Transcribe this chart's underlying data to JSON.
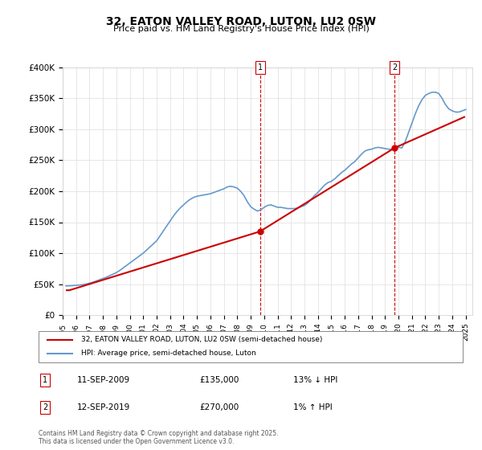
{
  "title": "32, EATON VALLEY ROAD, LUTON, LU2 0SW",
  "subtitle": "Price paid vs. HM Land Registry's House Price Index (HPI)",
  "ylabel_ticks": [
    "£0",
    "£50K",
    "£100K",
    "£150K",
    "£200K",
    "£250K",
    "£300K",
    "£350K",
    "£400K"
  ],
  "ylim": [
    0,
    400000
  ],
  "xlim_start": 1995.0,
  "xlim_end": 2025.5,
  "transaction1_year": 2009.69,
  "transaction2_year": 2019.7,
  "transaction1_price": 135000,
  "transaction2_price": 270000,
  "legend_line1": "32, EATON VALLEY ROAD, LUTON, LU2 0SW (semi-detached house)",
  "legend_line2": "HPI: Average price, semi-detached house, Luton",
  "table_row1": [
    "1",
    "11-SEP-2009",
    "£135,000",
    "13% ↓ HPI"
  ],
  "table_row2": [
    "2",
    "12-SEP-2019",
    "£270,000",
    "1% ↑ HPI"
  ],
  "footnote": "Contains HM Land Registry data © Crown copyright and database right 2025.\nThis data is licensed under the Open Government Licence v3.0.",
  "line_color_red": "#cc0000",
  "line_color_blue": "#6699cc",
  "bg_color": "#f8f8f8",
  "hpi_data": {
    "years": [
      1995.25,
      1995.5,
      1995.75,
      1996.0,
      1996.25,
      1996.5,
      1996.75,
      1997.0,
      1997.25,
      1997.5,
      1997.75,
      1998.0,
      1998.25,
      1998.5,
      1998.75,
      1999.0,
      1999.25,
      1999.5,
      1999.75,
      2000.0,
      2000.25,
      2000.5,
      2000.75,
      2001.0,
      2001.25,
      2001.5,
      2001.75,
      2002.0,
      2002.25,
      2002.5,
      2002.75,
      2003.0,
      2003.25,
      2003.5,
      2003.75,
      2004.0,
      2004.25,
      2004.5,
      2004.75,
      2005.0,
      2005.25,
      2005.5,
      2005.75,
      2006.0,
      2006.25,
      2006.5,
      2006.75,
      2007.0,
      2007.25,
      2007.5,
      2007.75,
      2008.0,
      2008.25,
      2008.5,
      2008.75,
      2009.0,
      2009.25,
      2009.5,
      2009.75,
      2010.0,
      2010.25,
      2010.5,
      2010.75,
      2011.0,
      2011.25,
      2011.5,
      2011.75,
      2012.0,
      2012.25,
      2012.5,
      2012.75,
      2013.0,
      2013.25,
      2013.5,
      2013.75,
      2014.0,
      2014.25,
      2014.5,
      2014.75,
      2015.0,
      2015.25,
      2015.5,
      2015.75,
      2016.0,
      2016.25,
      2016.5,
      2016.75,
      2017.0,
      2017.25,
      2017.5,
      2017.75,
      2018.0,
      2018.25,
      2018.5,
      2018.75,
      2019.0,
      2019.25,
      2019.5,
      2019.75,
      2020.0,
      2020.25,
      2020.5,
      2020.75,
      2021.0,
      2021.25,
      2021.5,
      2021.75,
      2022.0,
      2022.25,
      2022.5,
      2022.75,
      2023.0,
      2023.25,
      2023.5,
      2023.75,
      2024.0,
      2024.25,
      2024.5,
      2024.75,
      2025.0
    ],
    "values": [
      47000,
      47200,
      47500,
      48000,
      48500,
      49000,
      50000,
      51500,
      53000,
      55000,
      57000,
      59000,
      61000,
      63500,
      66000,
      68500,
      72000,
      76000,
      80000,
      84000,
      88000,
      92000,
      96000,
      100000,
      105000,
      110000,
      115000,
      120000,
      128000,
      136000,
      144000,
      152000,
      160000,
      167000,
      173000,
      178000,
      183000,
      187000,
      190000,
      192000,
      193000,
      194000,
      195000,
      196000,
      198000,
      200000,
      202000,
      204000,
      207000,
      208000,
      207000,
      205000,
      200000,
      193000,
      183000,
      175000,
      171000,
      168000,
      170000,
      174000,
      177000,
      178000,
      176000,
      174000,
      174000,
      173000,
      172000,
      172000,
      172000,
      173000,
      175000,
      177000,
      181000,
      187000,
      193000,
      198000,
      204000,
      210000,
      214000,
      216000,
      220000,
      225000,
      230000,
      234000,
      239000,
      244000,
      248000,
      254000,
      260000,
      265000,
      267000,
      268000,
      270000,
      271000,
      270000,
      269000,
      268000,
      268000,
      270000,
      271000,
      270000,
      280000,
      295000,
      310000,
      325000,
      338000,
      348000,
      355000,
      358000,
      360000,
      360000,
      358000,
      350000,
      340000,
      333000,
      330000,
      328000,
      328000,
      330000,
      332000
    ]
  },
  "price_data": {
    "years": [
      1995.5,
      2009.69,
      2019.7
    ],
    "values": [
      40000,
      135000,
      270000
    ]
  },
  "price_line_years": [
    1995.3,
    1995.5,
    2009.69,
    2019.7,
    2024.9
  ],
  "price_line_values": [
    40000,
    40000,
    135000,
    270000,
    320000
  ]
}
